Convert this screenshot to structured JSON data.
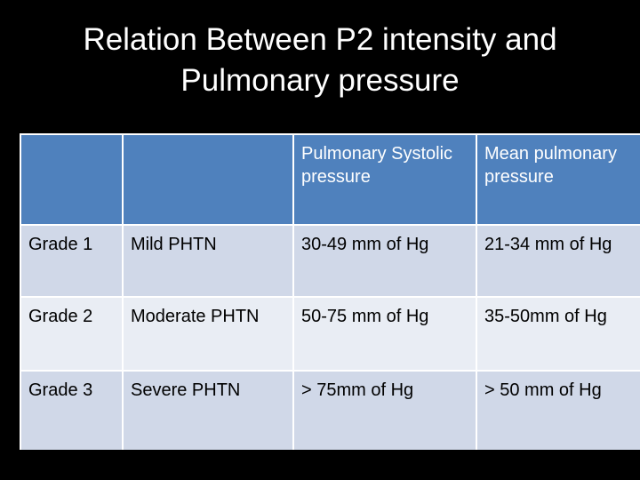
{
  "title": {
    "line1": "Relation Between P2 intensity and",
    "line2": "Pulmonary pressure"
  },
  "table": {
    "headers": [
      "",
      "",
      "Pulmonary Systolic pressure",
      "Mean pulmonary pressure"
    ],
    "rows": [
      [
        "Grade 1",
        "Mild PHTN",
        "30-49 mm of Hg",
        "21-34 mm of Hg"
      ],
      [
        "Grade 2",
        "Moderate PHTN",
        "50-75 mm of Hg",
        "35-50mm of Hg"
      ],
      [
        "Grade 3",
        "Severe PHTN",
        "> 75mm of Hg",
        "> 50 mm of Hg"
      ]
    ]
  },
  "colors": {
    "background": "#000000",
    "header_fill": "#4f81bd",
    "row_fill_dark": "#d0d8e8",
    "row_fill_light": "#e9edf4"
  }
}
